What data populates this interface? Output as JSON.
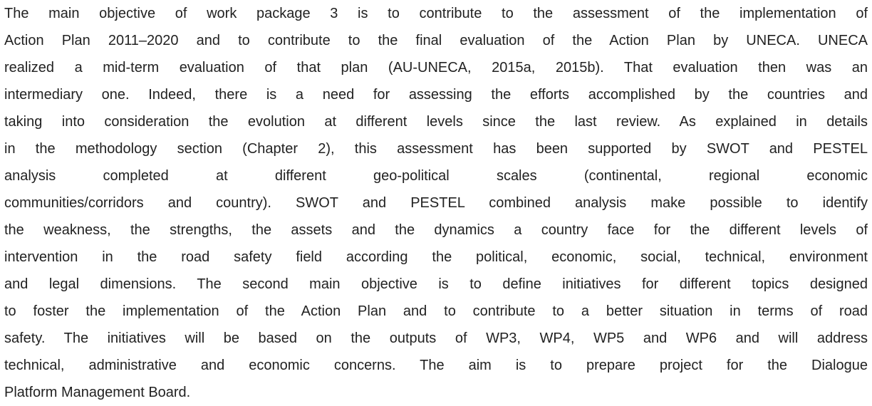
{
  "paragraph": {
    "lines": [
      "The main objective of work package 3 is to contribute to the assessment of the implementation of",
      "Action Plan 2011–2020 and to contribute to the final evaluation of the Action Plan by UNECA. UNECA",
      "realized a mid-term evaluation of that plan (AU-UNECA, 2015a, 2015b). That evaluation then was an",
      "intermediary one. Indeed, there is a need for assessing the efforts accomplished by the countries and",
      "taking into consideration the evolution at different levels since the last review. As explained in details",
      "in the methodology section (Chapter 2), this assessment has been supported by SWOT and PESTEL",
      "analysis completed at different geo-political scales (continental, regional economic",
      "communities/corridors and country). SWOT and PESTEL combined analysis make possible to identify",
      "the weakness, the strengths, the assets and the dynamics a country face for the different levels of",
      "intervention in the road safety field according the political, economic, social, technical, environment",
      "and legal dimensions. The second main objective is to define initiatives for different topics designed",
      "to foster the implementation of the Action Plan and to contribute to a better situation in terms of road",
      "safety. The initiatives will be based on the outputs of WP3, WP4, WP5 and WP6 and will address",
      "technical, administrative and economic concerns. The aim is to prepare project for the Dialogue",
      "Platform Management Board."
    ]
  }
}
